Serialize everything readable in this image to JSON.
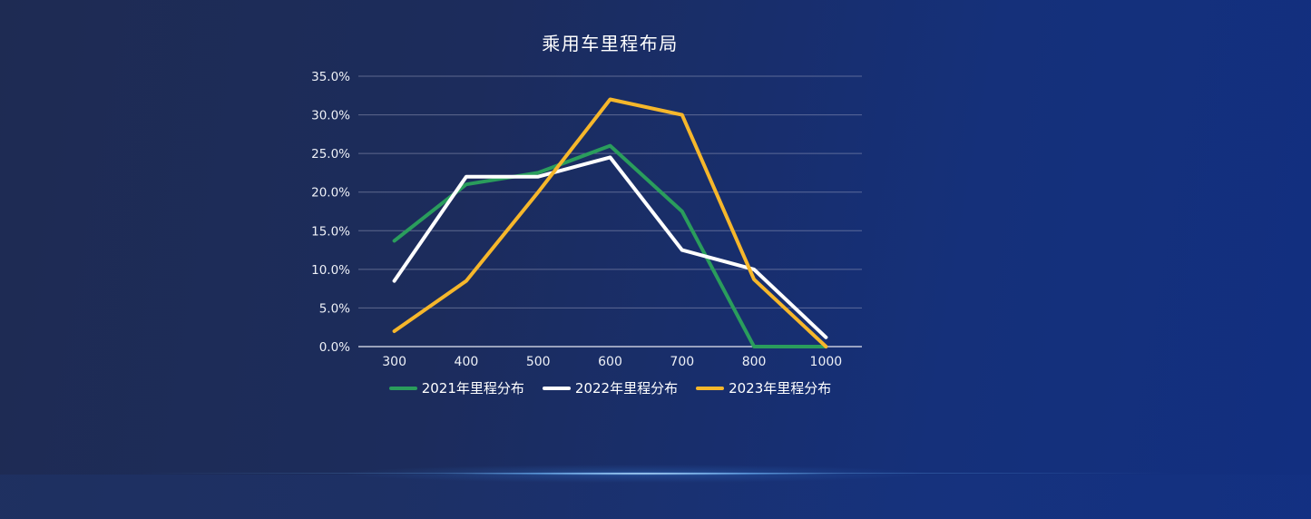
{
  "chart_data": {
    "type": "line",
    "title": "乘用车里程布局",
    "categories": [
      "300",
      "400",
      "500",
      "600",
      "700",
      "800",
      "1000"
    ],
    "series": [
      {
        "name": "2021年里程分布",
        "color": "#2A9D5C",
        "values": [
          13.7,
          21.0,
          22.5,
          26.0,
          17.5,
          0.0,
          0.0
        ]
      },
      {
        "name": "2022年里程分布",
        "color": "#FFFFFF",
        "values": [
          8.5,
          22.0,
          22.0,
          24.5,
          12.5,
          10.0,
          1.2
        ]
      },
      {
        "name": "2023年里程分布",
        "color": "#F6B72B",
        "values": [
          2.0,
          8.5,
          20.0,
          32.0,
          30.0,
          8.7,
          0.0
        ]
      }
    ],
    "y_ticks": [
      "35.0%",
      "30.0%",
      "25.0%",
      "20.0%",
      "15.0%",
      "10.0%",
      "5.0%",
      "0.0%"
    ],
    "ylim": [
      0,
      35
    ],
    "y_tick_step": 5,
    "grid": true,
    "legend_position": "bottom"
  },
  "theme": {
    "bg_gradient": [
      "#1E2B53",
      "#1C2C5C",
      "#15307A",
      "#122F80"
    ],
    "grid_line": "rgba(175,180,205,0.45)",
    "axis_line": "rgba(205,210,225,0.95)",
    "text_color": "#EEF1F7",
    "glow_core": "rgba(225,246,255,0.95)",
    "glow_mid": "rgba(110,185,255,0.55)",
    "glow_soft": "rgba(55,130,225,0.30)"
  }
}
